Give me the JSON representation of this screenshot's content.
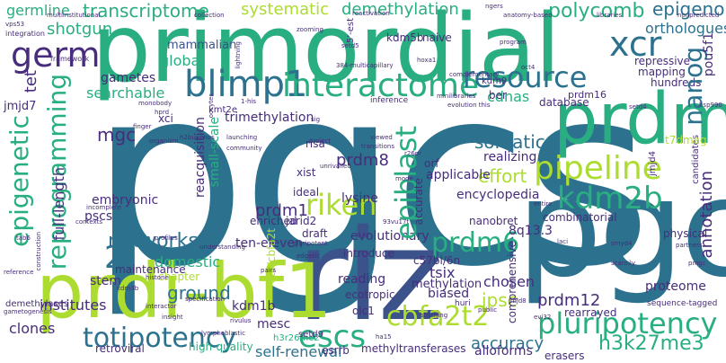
{
  "words": {
    "pgcs": "pgcs",
    "pgc": "pgc",
    "primordial": "primordial",
    "prdm": "prdm",
    "riz": "riz",
    "prdi_bf1": "prdi-bf1",
    "germ": "germ",
    "blimp1": "blimp1",
    "xcr": "xcr",
    "interactome": "interactome",
    "resource": "resource",
    "pipeline": "pipeline",
    "kdm2b": "kdm2b",
    "pgclcs": "pgclcs",
    "epiblast": "epiblast",
    "reprogramming": "reprogramming",
    "epigenetic": "epigenetic",
    "riken": "riken",
    "prdm6": "prdm6",
    "networks": "networks",
    "two_i": "2i",
    "totipotency": "totipotency",
    "escs": "escs",
    "cbfa2t2": "cbfa2t2",
    "pluripotency": "pluripotency",
    "nanog": "nanog",
    "epigenome": "epigenome",
    "transcriptome": "transcriptome",
    "systematic": "systematic",
    "demethylation": "demethylation",
    "polycomb": "polycomb",
    "orthologues": "orthologues",
    "shotgun": "shotgun",
    "germline": "germline",
    "mgc": "mgc",
    "searchable": "searchable",
    "gametes": "gametes",
    "tet": "tet",
    "h3k27me3": "h3k27me3",
    "self_renewal": "self-renewal",
    "accuracy": "accuracy",
    "prdm12": "prdm12",
    "annotation": "annotation",
    "prdm8": "prdm8",
    "prdm1": "prdm1",
    "somatic": "somatic",
    "cdnas": "cdnas",
    "effort": "effort",
    "ground": "ground",
    "global": "global",
    "mammalian": "mammalian",
    "domestic": "domestic",
    "small_scale": "small-scale",
    "trimethylation": "trimethylation",
    "reacquisition": "reacquisition",
    "embryonic": "embryonic",
    "full_length": "full-length",
    "kdm1b": "kdm1b",
    "kdm5b": "kdm5b",
    "pou5f1": "pou5f1",
    "jmjd7": "jmjd7",
    "ipsc": "ipsc",
    "tsix": "tsix",
    "mesc": "mesc",
    "lysine": "lysine",
    "eight_q13_3": "8q13.3",
    "realizing": "realizing",
    "evolutionary": "evolutionary",
    "encyclopedia": "encyclopedia",
    "pscs": "pscs",
    "ten_eleven": "ten-eleven",
    "methylation": "methylation",
    "institutes": "institutes",
    "clones": "clones",
    "stem": "stem",
    "maintenance": "maintenance",
    "chapter": "chapter",
    "repressive": "repressive",
    "mapping": "mapping",
    "hundreds": "hundreds",
    "database": "database",
    "prdm16": "prdm16",
    "rearrayed": "rearrayed",
    "proteome": "proteome",
    "physical": "physical",
    "chosen": "chosen",
    "comprehensive": "comprehensive",
    "retroviral": "retroviral",
    "high_quality": "high-quality",
    "methyltransferases": "methyltransferases",
    "alloforms": "alloforms",
    "esrrb": "esrrb",
    "erasers": "erasers",
    "setd9": "setd9",
    "biased": "biased",
    "reading": "reading",
    "ecotropic": "ecotropic",
    "olc1": "olc1",
    "nanobret": "nanobret",
    "combinatorial": "combinatorial",
    "applicable": "applicable",
    "xist": "xist",
    "risa": "risa",
    "enriched": "enriched",
    "ideal": "ideal",
    "draft": "draft",
    "jarid2": "jarid2",
    "orf": "orf",
    "kmt2e": "kmt2e",
    "kdm9": "kdm9",
    "ber": "ber",
    "xci": "xci",
    "naive": "naive",
    "introduce": "introduce",
    "c57bl_6n": "c57bl/6n",
    "h3r26me2": "h3r26me2",
    "eto_cbfa2t": "eto/cbfa2t",
    "demethylases": "demethylases",
    "integration": "integration",
    "framework": "framework",
    "candidates": "candidates",
    "jmjd4": "jmjd4",
    "accurate": "accurate",
    "multiinstitutional": "multiinstitutional",
    "collection": "collection",
    "reactivation": "reactivation",
    "anatomy_based": "anatomy-based",
    "libraries": "libraries",
    "nonpredicted": "nonpredicted",
    "vps53": "vps53",
    "gametogenesis": "gametogenesis",
    "reference": "reference",
    "construction": "construction",
    "monobody": "monobody",
    "hprd": "hprd",
    "oocytes": "oocytes",
    "inference": "inference",
    "minilibraries": "minilibraries",
    "complementary": "complementary",
    "octa": "oct4",
    "hsp990": "hsp990",
    "setd4": "setd4",
    "t7dmag": "t7dmag",
    "r26pr": "r26pr",
    "transitions": "transitions",
    "viewed": "viewed",
    "project": "project",
    "unrivalled": "unrivalled",
    "launching": "launching",
    "community": "community",
    "h2buvenus": "h2buvenus",
    "organism": "organism",
    "finger": "finger",
    "pluripotent": "pluripotent",
    "edgetic": "edgetic",
    "understanding": "understanding",
    "profiles": "profiles",
    "pairs": "pairs",
    "kdm3b": "kdm3b",
    "histone": "histone",
    "specification": "specification",
    "interactor": "interactor",
    "insight": "insight",
    "rivulus": "rivulus",
    "lymphoblastic": "lymphoblastic",
    "ngers": "ngers",
    "hoxa1": "hoxa1",
    "program": "program",
    "zooming": "zooming",
    "lightning": "lightning",
    "setd5": "setd5",
    "three84_multicapillary": "384-multicapillary",
    "evolution_this": "evolution this",
    "mode": "mode",
    "sig": "sig",
    "one_his": "1-his",
    "public": "public",
    "stitching": "stitching",
    "scantily": "scantily",
    "sequence_tagged": "sequence-tagged",
    "pmgc": "pmgc",
    "partners": "partners",
    "entire": "entire",
    "huri": "huri",
    "laci": "laci",
    "evi32": "evi32",
    "incomplete": "incomplete",
    "tab6": "tab6",
    "contexts": "contexts",
    "five_est": "5'-est",
    "ninety3vu17t": "93vu17t",
    "ha15": "ha15",
    "jmjd8": "jmjd8",
    "smyd4": "smyd4"
  },
  "colors": {
    "background": "#ffffff",
    "teal": "#2c728e",
    "green": "#28ae80",
    "purple": "#472d7b",
    "lime": "#addc30",
    "blue": "#3b528b"
  }
}
